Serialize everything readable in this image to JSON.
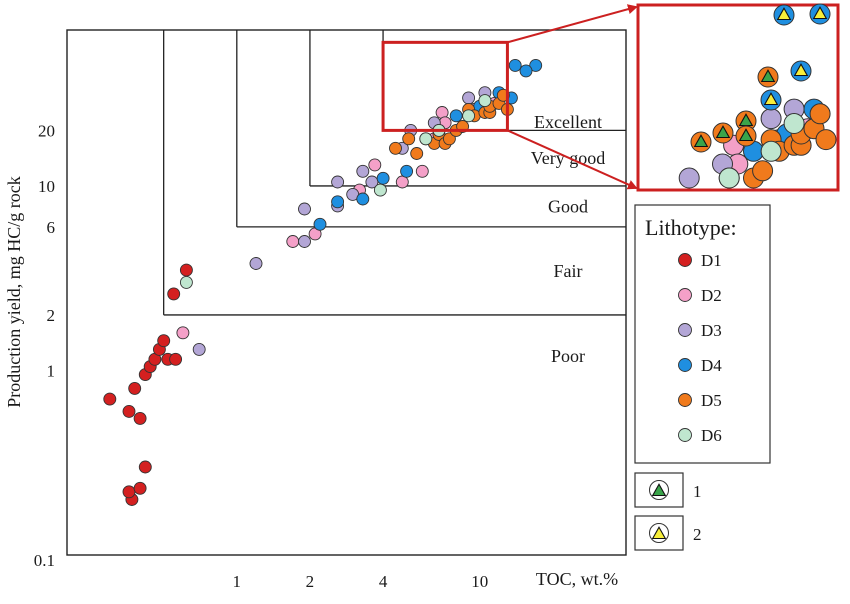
{
  "chart_data": {
    "type": "scatter",
    "title": "",
    "xlabel": "TOC, wt.%",
    "ylabel": "Production yield, mg HC/g rock",
    "x_scale": "log",
    "y_scale": "log",
    "xlim": [
      0.2,
      40
    ],
    "ylim": [
      0.1,
      70
    ],
    "x_ticks": [
      {
        "value": 1,
        "label": "1"
      },
      {
        "value": 2,
        "label": "2"
      },
      {
        "value": 4,
        "label": "4"
      },
      {
        "value": 10,
        "label": "10"
      }
    ],
    "y_ticks": [
      {
        "value": 0.1,
        "label": "0.1"
      },
      {
        "value": 1,
        "label": "1"
      },
      {
        "value": 2,
        "label": "2"
      },
      {
        "value": 6,
        "label": "6"
      },
      {
        "value": 10,
        "label": "10"
      },
      {
        "value": 20,
        "label": "20"
      }
    ],
    "classes": [
      {
        "label": "Poor",
        "x_min": 0.5,
        "y_min": 0.1,
        "y_max": 2
      },
      {
        "label": "Fair",
        "x_min": 0.5,
        "y_min": 2,
        "y_max": 6
      },
      {
        "label": "Good",
        "x_min": 1,
        "y_min": 6,
        "y_max": 10
      },
      {
        "label": "Very good",
        "x_min": 2,
        "y_min": 10,
        "y_max": 20
      },
      {
        "label": "Excellent",
        "x_min": 4,
        "y_min": 20,
        "y_max": 70
      }
    ],
    "legend": {
      "title": "Lithotype:",
      "placement": "right",
      "entries": [
        {
          "name": "D1",
          "color": "#d42020"
        },
        {
          "name": "D2",
          "color": "#f4a0c8"
        },
        {
          "name": "D3",
          "color": "#b3a6d6"
        },
        {
          "name": "D4",
          "color": "#1f8fe0"
        },
        {
          "name": "D5",
          "color": "#f07a1c"
        },
        {
          "name": "D6",
          "color": "#bfe6cf"
        }
      ]
    },
    "marker_legend": [
      {
        "label": "1",
        "fill": "#3aa44a"
      },
      {
        "label": "2",
        "fill": "#f7ee3a"
      }
    ],
    "inset": {
      "x_range": [
        4,
        13
      ],
      "y_range": [
        20,
        60
      ],
      "frame_color": "#cc2020"
    },
    "series": [
      {
        "name": "D1",
        "points": [
          [
            0.3,
            0.7
          ],
          [
            0.36,
            0.6
          ],
          [
            0.38,
            0.8
          ],
          [
            0.4,
            0.55
          ],
          [
            0.42,
            0.95
          ],
          [
            0.44,
            1.05
          ],
          [
            0.46,
            1.15
          ],
          [
            0.48,
            1.3
          ],
          [
            0.5,
            1.45
          ],
          [
            0.52,
            1.15
          ],
          [
            0.56,
            1.15
          ],
          [
            0.62,
            3.5
          ],
          [
            0.55,
            2.6
          ],
          [
            0.42,
            0.3
          ],
          [
            0.37,
            0.2
          ],
          [
            0.36,
            0.22
          ],
          [
            0.4,
            0.23
          ]
        ]
      },
      {
        "name": "D2",
        "points": [
          [
            0.6,
            1.6
          ],
          [
            1.7,
            5.0
          ],
          [
            2.1,
            5.5
          ],
          [
            3.2,
            9.5
          ],
          [
            3.7,
            13
          ],
          [
            4.8,
            10.5
          ],
          [
            5.8,
            12
          ],
          [
            6.5,
            18
          ],
          [
            7.0,
            25
          ],
          [
            7.2,
            22
          ],
          [
            9.5,
            26
          ],
          [
            11.5,
            28
          ]
        ]
      },
      {
        "name": "D3",
        "points": [
          [
            0.7,
            1.3
          ],
          [
            1.2,
            3.8
          ],
          [
            1.9,
            7.5
          ],
          [
            1.9,
            5.0
          ],
          [
            2.6,
            7.8
          ],
          [
            2.6,
            10.5
          ],
          [
            3.0,
            9.0
          ],
          [
            3.6,
            10.5
          ],
          [
            3.3,
            12
          ],
          [
            4.8,
            16
          ],
          [
            5.2,
            20
          ],
          [
            6.5,
            22
          ],
          [
            9.0,
            30
          ],
          [
            10.5,
            32
          ]
        ]
      },
      {
        "name": "D4",
        "points": [
          [
            2.2,
            6.2
          ],
          [
            2.6,
            8.2
          ],
          [
            3.3,
            8.5
          ],
          [
            4.0,
            11
          ],
          [
            5.0,
            12
          ],
          [
            6.8,
            20
          ],
          [
            8.0,
            24
          ],
          [
            10.0,
            27
          ],
          [
            12.0,
            32
          ],
          [
            13.5,
            30
          ],
          [
            14.0,
            45
          ],
          [
            17.0,
            45
          ],
          [
            15.5,
            42
          ]
        ]
      },
      {
        "name": "D5",
        "points": [
          [
            4.5,
            16
          ],
          [
            5.1,
            18
          ],
          [
            5.5,
            15
          ],
          [
            6.0,
            18
          ],
          [
            6.5,
            17
          ],
          [
            6.8,
            19
          ],
          [
            7.2,
            17
          ],
          [
            7.5,
            18
          ],
          [
            8.0,
            20
          ],
          [
            8.5,
            21
          ],
          [
            9.0,
            26
          ],
          [
            9.5,
            24
          ],
          [
            10.5,
            25
          ],
          [
            11.0,
            25
          ],
          [
            11.0,
            27
          ],
          [
            12.0,
            28
          ],
          [
            12.5,
            31
          ],
          [
            13.0,
            26
          ]
        ]
      },
      {
        "name": "D6",
        "points": [
          [
            0.62,
            3.0
          ],
          [
            3.9,
            9.5
          ],
          [
            6.0,
            18
          ],
          [
            6.8,
            20
          ],
          [
            9.0,
            24
          ],
          [
            10.5,
            29
          ]
        ]
      }
    ]
  }
}
